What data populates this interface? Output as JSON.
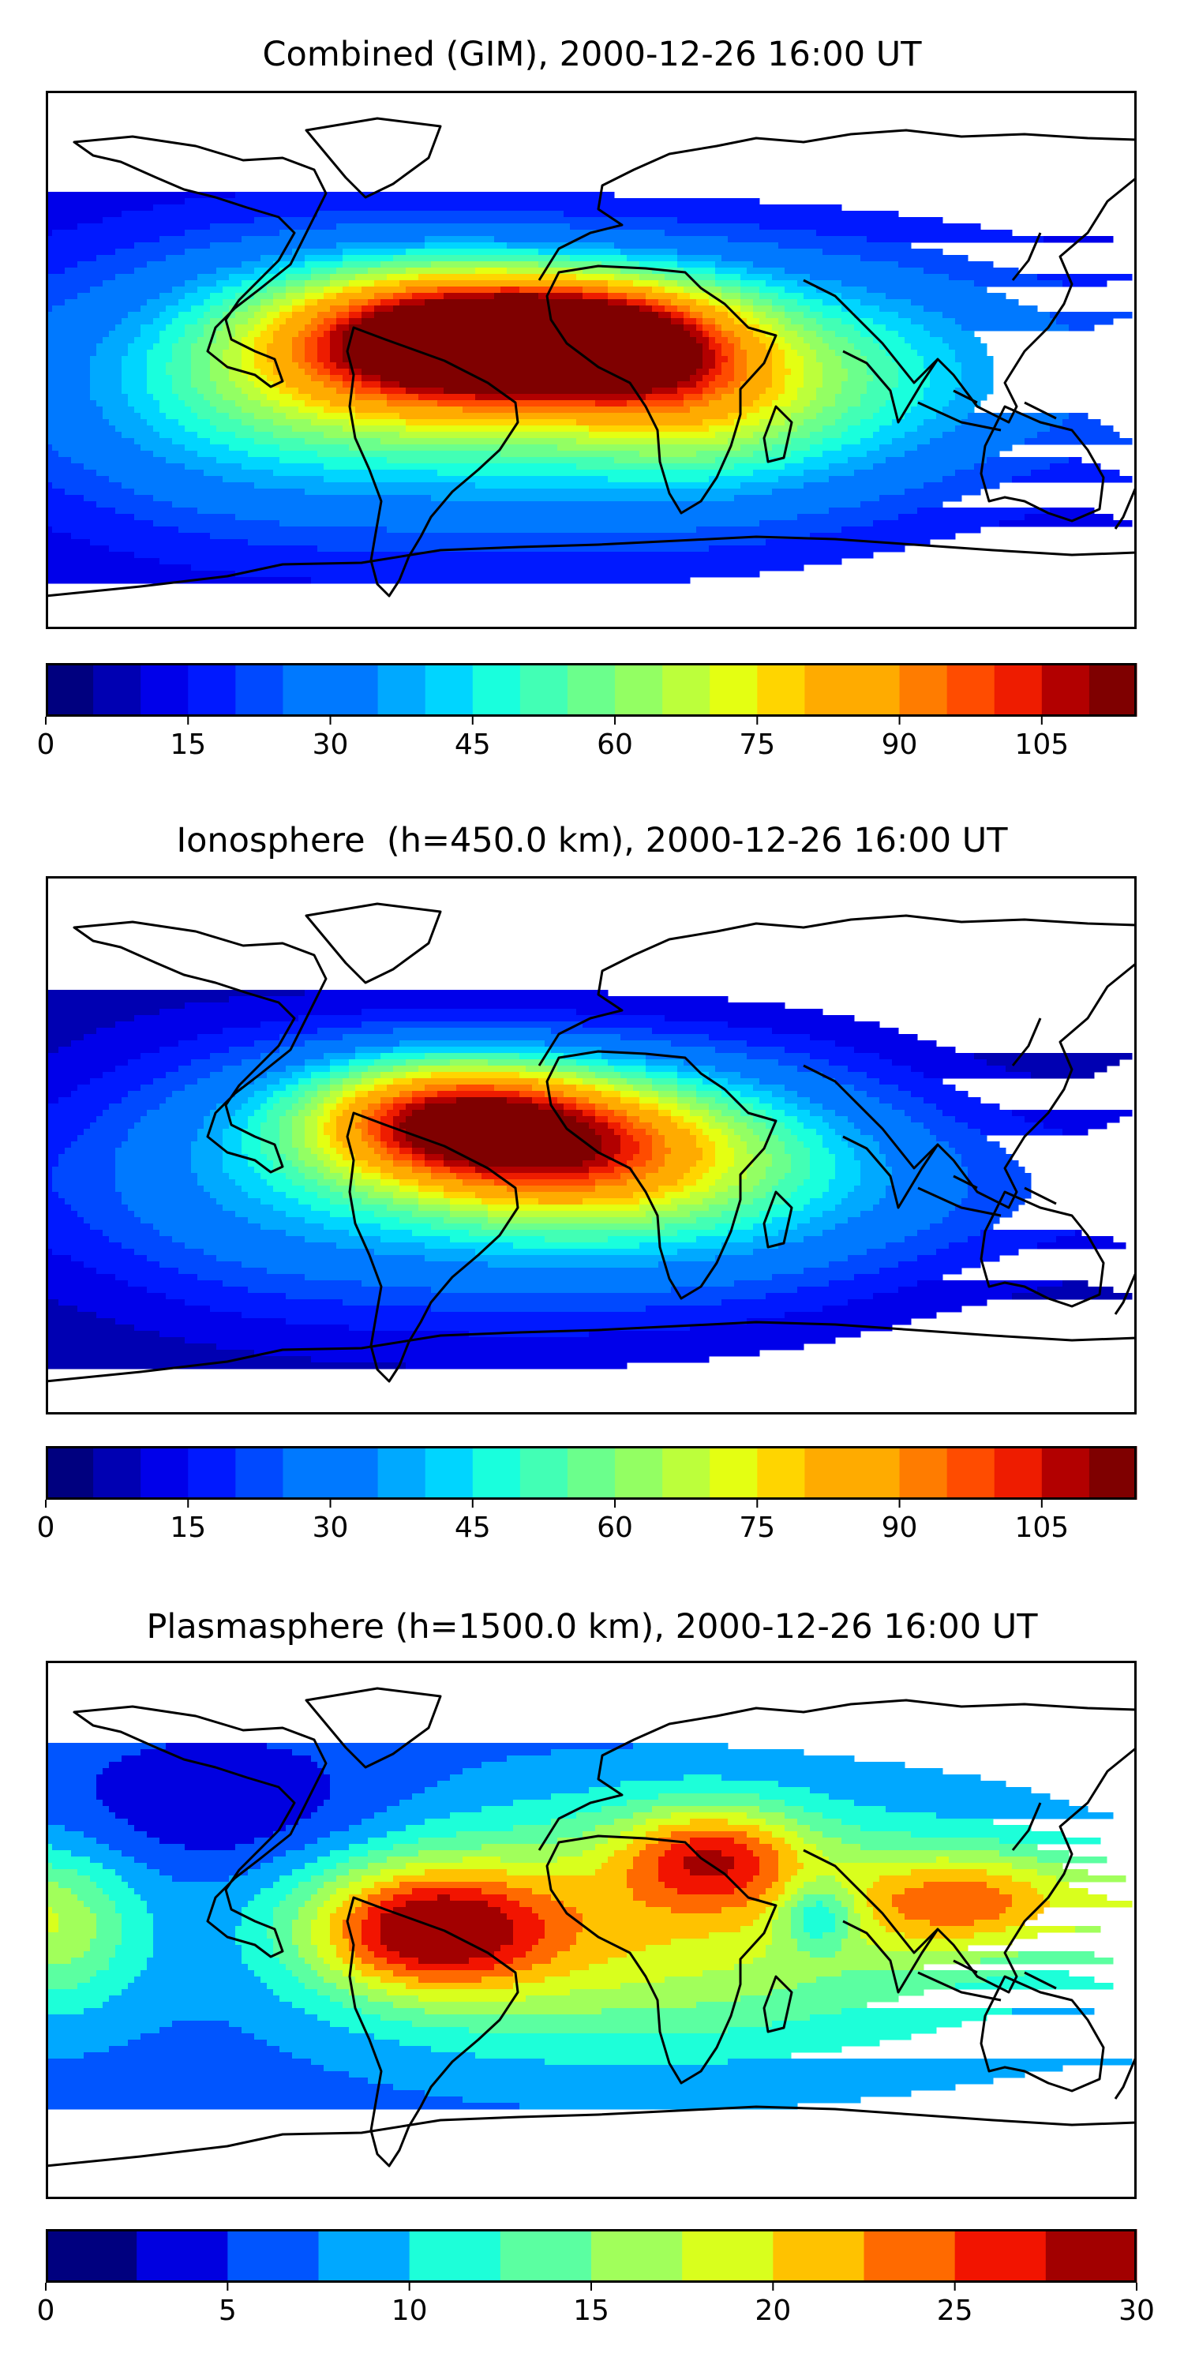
{
  "colors": {
    "jet20": [
      "#00007f",
      "#0000b2",
      "#0000ea",
      "#0019ff",
      "#0049ff",
      "#0079ff",
      "#00a9ff",
      "#00d5ff",
      "#19ffdd",
      "#42ffb5",
      "#6bff8c",
      "#93ff63",
      "#bcff3b",
      "#e4ff12",
      "#ffd500",
      "#ffab00",
      "#ff7c00",
      "#ff4c00",
      "#ee1c00",
      "#b20000",
      "#7f0000"
    ],
    "jet12": [
      "#00007f",
      "#0000e0",
      "#0055ff",
      "#00a8ff",
      "#1dffd9",
      "#5bffa1",
      "#a1ff5b",
      "#d9ff1d",
      "#ffc200",
      "#ff6a00",
      "#f21400",
      "#a20000"
    ],
    "coast": "#000000"
  },
  "panels": [
    {
      "title": "Combined (GIM), 2000-12-26 16:00 UT",
      "colorbar": {
        "vmin": 0,
        "vmax": 115,
        "step": 5,
        "ticks": [
          0,
          15,
          30,
          45,
          60,
          75,
          90,
          105
        ]
      },
      "field": {
        "base": 10,
        "blobs": [
          {
            "lon": -50,
            "lat": 8,
            "amp": 80,
            "slon": 40,
            "slat": 17
          },
          {
            "lon": 0,
            "lat": 8,
            "amp": 55,
            "slon": 30,
            "slat": 14
          },
          {
            "lon": 30,
            "lat": -5,
            "amp": 20,
            "slon": 25,
            "slat": 20
          },
          {
            "lon": -20,
            "lat": -12,
            "amp": 45,
            "slon": 85,
            "slat": 30
          },
          {
            "lon": 60,
            "lat": -5,
            "amp": 22,
            "slon": 40,
            "slat": 25
          },
          {
            "lon": -120,
            "lat": -5,
            "amp": 20,
            "slon": 45,
            "slat": 30
          },
          {
            "lon": 120,
            "lat": 0,
            "amp": 12,
            "slon": 40,
            "slat": 25
          }
        ]
      }
    },
    {
      "title": "Ionosphere  (h=450.0 km), 2000-12-26 16:00 UT",
      "colorbar": {
        "vmin": 0,
        "vmax": 115,
        "step": 5,
        "ticks": [
          0,
          15,
          30,
          45,
          60,
          75,
          90,
          105
        ]
      },
      "field": {
        "base": 5,
        "blobs": [
          {
            "lon": -50,
            "lat": 10,
            "amp": 62,
            "slon": 35,
            "slat": 15
          },
          {
            "lon": -5,
            "lat": 0,
            "amp": 55,
            "slon": 40,
            "slat": 18
          },
          {
            "lon": -20,
            "lat": -15,
            "amp": 35,
            "slon": 80,
            "slat": 30
          },
          {
            "lon": 60,
            "lat": -5,
            "amp": 18,
            "slon": 40,
            "slat": 25
          },
          {
            "lon": -120,
            "lat": -5,
            "amp": 15,
            "slon": 45,
            "slat": 30
          },
          {
            "lon": 130,
            "lat": -15,
            "amp": 8,
            "slon": 40,
            "slat": 20
          }
        ]
      }
    },
    {
      "title": "Plasmasphere (h=1500.0 km), 2000-12-26 16:00 UT",
      "colorbar": {
        "vmin": 0,
        "vmax": 30,
        "step": 2.5,
        "ticks": [
          0,
          5,
          10,
          15,
          20,
          25,
          30
        ]
      },
      "field": {
        "base": 6,
        "blobs": [
          {
            "lon": -55,
            "lat": 0,
            "amp": 17,
            "slon": 28,
            "slat": 15
          },
          {
            "lon": 40,
            "lat": 25,
            "amp": 13,
            "slon": 22,
            "slat": 12
          },
          {
            "lon": 125,
            "lat": 10,
            "amp": 12,
            "slon": 30,
            "slat": 12
          },
          {
            "lon": 60,
            "lat": 0,
            "amp": 8,
            "slon": 90,
            "slat": 30
          },
          {
            "lon": -10,
            "lat": 0,
            "amp": 7,
            "slon": 60,
            "slat": 28
          },
          {
            "lon": -175,
            "lat": 0,
            "amp": 7,
            "slon": 18,
            "slat": 18
          },
          {
            "lon": 75,
            "lat": 5,
            "amp": -9,
            "slon": 9,
            "slat": 8
          },
          {
            "lon": -120,
            "lat": 40,
            "amp": -4,
            "slon": 40,
            "slat": 15
          }
        ]
      }
    }
  ]
}
